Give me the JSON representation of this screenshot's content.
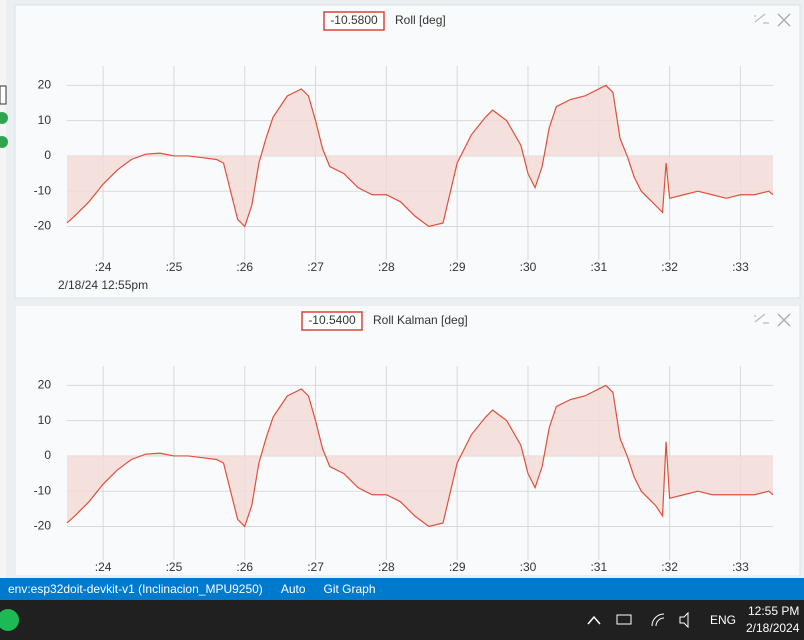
{
  "chart_data": [
    {
      "type": "line",
      "title": "Roll [deg]",
      "readout": "-10.5800",
      "x_label": "2/18/24 12:55pm",
      "x": [
        23.49,
        23.6,
        23.8,
        24.0,
        24.2,
        24.4,
        24.6,
        24.8,
        25.0,
        25.2,
        25.4,
        25.6,
        25.7,
        25.8,
        25.9,
        26.0,
        26.1,
        26.2,
        26.3,
        26.4,
        26.6,
        26.8,
        26.9,
        27.0,
        27.1,
        27.2,
        27.4,
        27.6,
        27.8,
        28.0,
        28.2,
        28.4,
        28.6,
        28.8,
        29.0,
        29.2,
        29.4,
        29.5,
        29.7,
        29.9,
        30.0,
        30.1,
        30.2,
        30.3,
        30.4,
        30.6,
        30.8,
        31.0,
        31.1,
        31.2,
        31.3,
        31.4,
        31.5,
        31.6,
        31.8,
        31.9,
        31.95,
        32.0,
        32.2,
        32.4,
        32.6,
        32.8,
        33.0,
        33.2,
        33.4,
        33.46
      ],
      "values": [
        -19,
        -17,
        -13,
        -8,
        -4,
        -1,
        0.5,
        0.8,
        0,
        0,
        -0.5,
        -1,
        -2,
        -10,
        -18,
        -20,
        -14,
        -2,
        5,
        11,
        17,
        19,
        17,
        10,
        2,
        -3,
        -5,
        -9,
        -11,
        -11,
        -13,
        -17,
        -20,
        -19,
        -2,
        6,
        11,
        13,
        10,
        3,
        -5,
        -9,
        -3,
        8,
        14,
        16,
        17,
        19,
        20,
        18,
        5,
        0,
        -6,
        -10,
        -14,
        -16,
        -2,
        -12,
        -11,
        -10,
        -11,
        -12,
        -11,
        -11,
        -10,
        -11
      ],
      "color": "#e0503c",
      "fill": "#f2d9d5",
      "xlim": [
        23.49,
        33.46
      ],
      "ylim": [
        -29.5,
        25.5
      ],
      "xticks": [
        {
          "value": 24,
          "label": ":24"
        },
        {
          "value": 25,
          "label": ":25"
        },
        {
          "value": 26,
          "label": ":26"
        },
        {
          "value": 27,
          "label": ":27"
        },
        {
          "value": 28,
          "label": ":28"
        },
        {
          "value": 29,
          "label": ":29"
        },
        {
          "value": 30,
          "label": ":30"
        },
        {
          "value": 31,
          "label": ":31"
        },
        {
          "value": 32,
          "label": ":32"
        },
        {
          "value": 33,
          "label": ":33"
        }
      ],
      "yticks": [
        -20,
        -10,
        0,
        10,
        20
      ],
      "grid": true
    },
    {
      "type": "line",
      "title": "Roll Kalman [deg]",
      "readout": "-10.5400",
      "x": [
        23.49,
        23.6,
        23.8,
        24.0,
        24.2,
        24.4,
        24.6,
        24.8,
        25.0,
        25.2,
        25.4,
        25.6,
        25.7,
        25.8,
        25.9,
        26.0,
        26.1,
        26.2,
        26.3,
        26.4,
        26.6,
        26.8,
        26.9,
        27.0,
        27.1,
        27.2,
        27.4,
        27.6,
        27.8,
        28.0,
        28.2,
        28.4,
        28.6,
        28.8,
        29.0,
        29.2,
        29.4,
        29.5,
        29.7,
        29.9,
        30.0,
        30.1,
        30.2,
        30.3,
        30.4,
        30.6,
        30.8,
        31.0,
        31.1,
        31.2,
        31.3,
        31.4,
        31.5,
        31.6,
        31.8,
        31.9,
        31.95,
        32.0,
        32.2,
        32.4,
        32.6,
        32.8,
        33.0,
        33.2,
        33.4,
        33.46
      ],
      "values": [
        -19,
        -17,
        -13,
        -8,
        -4,
        -1,
        0.5,
        0.8,
        0,
        0,
        -0.5,
        -1,
        -2,
        -10,
        -18,
        -20,
        -14,
        -2,
        5,
        11,
        17,
        19,
        17,
        10,
        2,
        -3,
        -5,
        -9,
        -11,
        -11,
        -13,
        -17,
        -20,
        -19,
        -2,
        6,
        11,
        13,
        10,
        3,
        -5,
        -9,
        -3,
        8,
        14,
        16,
        17,
        19,
        20,
        18,
        5,
        0,
        -6,
        -10,
        -14,
        -17,
        4,
        -12,
        -11,
        -10,
        -11,
        -11,
        -11,
        -11,
        -10,
        -11
      ],
      "color": "#e0503c",
      "fill": "#f2d9d5",
      "xlim": [
        23.49,
        33.46
      ],
      "ylim": [
        -29.5,
        25.5
      ],
      "xticks": [
        {
          "value": 24,
          "label": ":24"
        },
        {
          "value": 25,
          "label": ":25"
        },
        {
          "value": 26,
          "label": ":26"
        },
        {
          "value": 27,
          "label": ":27"
        },
        {
          "value": 28,
          "label": ":28"
        },
        {
          "value": 29,
          "label": ":29"
        },
        {
          "value": 30,
          "label": ":30"
        },
        {
          "value": 31,
          "label": ":31"
        },
        {
          "value": 32,
          "label": ":32"
        },
        {
          "value": 33,
          "label": ":33"
        }
      ],
      "yticks": [
        -20,
        -10,
        0,
        10,
        20
      ],
      "grid": true
    }
  ],
  "status_bar": {
    "environment": "env:esp32doit-devkit-v1 (Inclinacion_MPU9250)",
    "mode": "Auto",
    "git": "Git Graph"
  },
  "taskbar": {
    "language": "ENG",
    "time": "12:55 PM",
    "date": "2/18/2024"
  }
}
